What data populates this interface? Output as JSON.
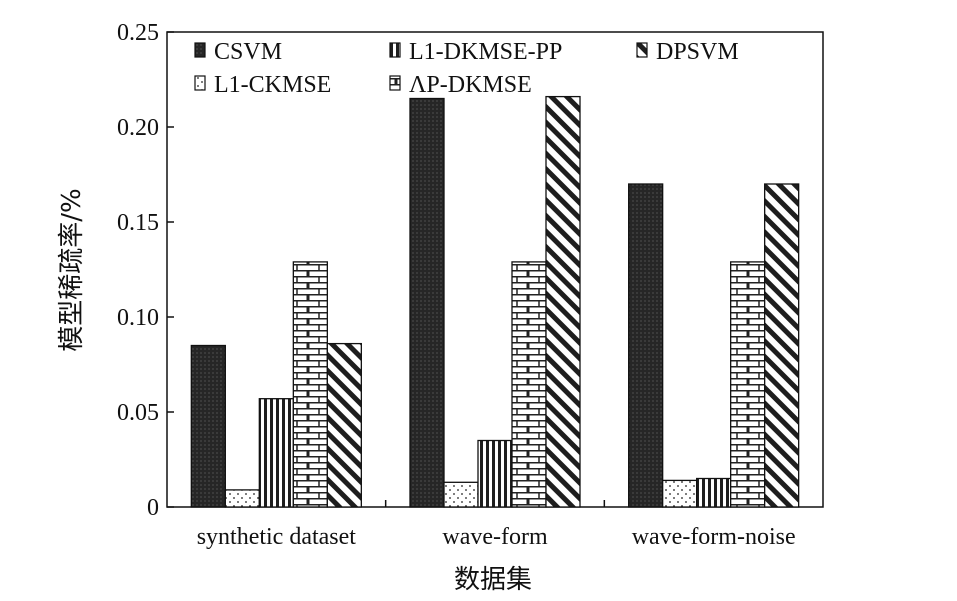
{
  "chart_data": {
    "type": "bar",
    "title": "",
    "xlabel": "数据集",
    "ylabel": "模型稀疏率/%",
    "categories": [
      "synthetic dataset",
      "wave-form",
      "wave-form-noise"
    ],
    "ylim": [
      0,
      0.25
    ],
    "yticks": [
      0,
      0.05,
      0.1,
      0.15,
      0.2,
      0.25
    ],
    "ytick_labels": [
      "0",
      "0.05",
      "0.10",
      "0.15",
      "0.20",
      "0.25"
    ],
    "grid": false,
    "legend_position": "top",
    "series": [
      {
        "name": "CSVM",
        "pattern": "dark-dotted",
        "values": [
          0.085,
          0.215,
          0.17
        ]
      },
      {
        "name": "L1-CKMSE",
        "pattern": "sparse-dots",
        "values": [
          0.009,
          0.013,
          0.014
        ]
      },
      {
        "name": "L1-DKMSE-PP",
        "pattern": "vertical-stripes",
        "values": [
          0.057,
          0.035,
          0.015
        ]
      },
      {
        "name": "ΛP-DKMSE",
        "pattern": "brick",
        "values": [
          0.129,
          0.129,
          0.129
        ]
      },
      {
        "name": "DPSVM",
        "pattern": "diagonal-stripes",
        "values": [
          0.086,
          0.216,
          0.17
        ]
      }
    ],
    "legend_order": [
      "CSVM",
      "L1-DKMSE-PP",
      "DPSVM",
      "L1-CKMSE",
      "ΛP-DKMSE"
    ]
  }
}
